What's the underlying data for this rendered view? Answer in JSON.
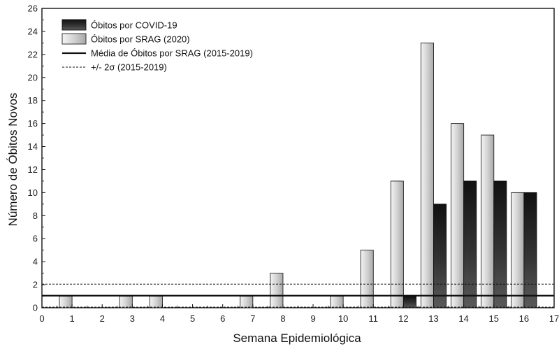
{
  "chart_data": {
    "type": "bar",
    "xlabel": "Semana Epidemiológica",
    "ylabel": "Número de Óbitos Novos",
    "xlim": [
      0,
      17
    ],
    "ylim": [
      0,
      26
    ],
    "x_ticks": [
      0,
      1,
      2,
      3,
      4,
      5,
      6,
      7,
      8,
      9,
      10,
      11,
      12,
      13,
      14,
      15,
      16,
      17
    ],
    "y_ticks": [
      0,
      2,
      4,
      6,
      8,
      10,
      12,
      14,
      16,
      18,
      20,
      22,
      24,
      26
    ],
    "series": [
      {
        "name": "Óbitos por SRAG (2020)",
        "color": "#d8d8d8",
        "points": [
          {
            "x": 1,
            "y": 1
          },
          {
            "x": 3,
            "y": 1
          },
          {
            "x": 4,
            "y": 1
          },
          {
            "x": 7,
            "y": 1
          },
          {
            "x": 8,
            "y": 3
          },
          {
            "x": 10,
            "y": 1
          },
          {
            "x": 11,
            "y": 5
          },
          {
            "x": 12,
            "y": 11
          },
          {
            "x": 13,
            "y": 23
          },
          {
            "x": 14,
            "y": 16
          },
          {
            "x": 15,
            "y": 15
          },
          {
            "x": 16,
            "y": 10
          }
        ]
      },
      {
        "name": "Óbitos por COVID-19",
        "color": "#2b2b2b",
        "points": [
          {
            "x": 12,
            "y": 1
          },
          {
            "x": 13,
            "y": 9
          },
          {
            "x": 14,
            "y": 11
          },
          {
            "x": 15,
            "y": 11
          },
          {
            "x": 16,
            "y": 10
          }
        ]
      }
    ],
    "reference_lines": [
      {
        "name": "Média de Óbitos por SRAG (2015-2019)",
        "y": 1.05,
        "style": "solid"
      },
      {
        "name": "+/- 2σ (2015-2019)",
        "y": 2.05,
        "style": "dotted"
      },
      {
        "name": "+/- 2σ (2015-2019)",
        "y": 0.05,
        "style": "dotted"
      }
    ],
    "legend": {
      "placement": "top-left",
      "items": [
        {
          "label": "Óbitos por COVID-19",
          "kind": "bar-dark"
        },
        {
          "label": "Óbitos por SRAG (2020)",
          "kind": "bar-light"
        },
        {
          "label": "Média de Óbitos por SRAG (2015-2019)",
          "kind": "line-solid"
        },
        {
          "label": "+/- 2σ (2015-2019)",
          "kind": "line-dotted"
        }
      ]
    },
    "grid": false
  }
}
